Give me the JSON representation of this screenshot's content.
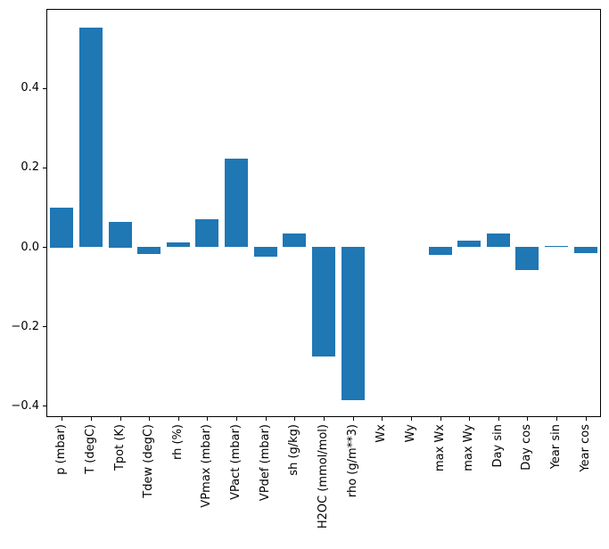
{
  "figure": {
    "background": "#ffffff",
    "spine_color": "#000000",
    "text_color": "#000000"
  },
  "chart_data": {
    "type": "bar",
    "title": "",
    "xlabel": "",
    "ylabel": "",
    "bar_color": "#1f77b4",
    "grid": false,
    "legend": null,
    "x_tick_rotation_deg": 90,
    "ylim": [
      -0.426,
      0.597
    ],
    "categories": [
      "p (mbar)",
      "T (degC)",
      "Tpot (K)",
      "Tdew (degC)",
      "rh (%)",
      "VPmax (mbar)",
      "VPact (mbar)",
      "VPdef (mbar)",
      "sh (g/kg)",
      "H2OC (mmol/mol)",
      "rho (g/m**3)",
      "Wx",
      "Wy",
      "max Wx",
      "max Wy",
      "Day sin",
      "Day cos",
      "Year sin",
      "Year cos"
    ],
    "values": [
      0.1,
      0.552,
      0.064,
      -0.019,
      0.012,
      0.069,
      0.222,
      -0.024,
      0.033,
      -0.277,
      -0.385,
      0.0,
      0.0,
      -0.02,
      0.016,
      0.034,
      -0.059,
      0.002,
      -0.015
    ],
    "yticks": [
      {
        "value": 0.4,
        "label": "0.4"
      },
      {
        "value": 0.2,
        "label": "0.2"
      },
      {
        "value": 0.0,
        "label": "0.0"
      },
      {
        "value": -0.2,
        "label": "−0.2"
      },
      {
        "value": -0.4,
        "label": "−0.4"
      }
    ]
  }
}
